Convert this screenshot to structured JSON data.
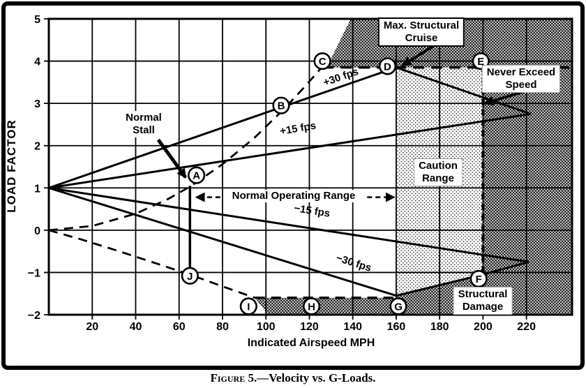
{
  "figure": {
    "caption_figure": "Figure",
    "caption_rest": " 5.—Velocity vs. G-Loads."
  },
  "axes": {
    "x_title": "Indicated Airspeed MPH",
    "y_title": "LOAD FACTOR"
  },
  "labels": {
    "max_structural_cruise": {
      "line1": "Max. Structural",
      "line2": "Cruise"
    },
    "never_exceed": {
      "line1": "Never Exceed",
      "line2": "Speed"
    },
    "caution_range": {
      "line1": "Caution",
      "line2": "Range"
    },
    "structural_damage": {
      "line1": "Structural",
      "line2": "Damage"
    },
    "normal_stall": {
      "line1": "Normal",
      "line2": "Stall"
    },
    "normal_operating_range": "Normal Operating Range"
  },
  "colors": {
    "ink": "#000000",
    "paper": "#ffffff",
    "dark_region_avg": "#8a8a8a",
    "caution_region_avg": "#c9c9c9"
  },
  "chart_data": {
    "type": "line",
    "title": "Figure 5.—Velocity vs. G-Loads.",
    "xlabel": "Indicated Airspeed MPH",
    "ylabel": "LOAD FACTOR",
    "xlim": [
      0,
      241
    ],
    "ylim": [
      -2,
      5
    ],
    "grid": true,
    "x_ticks": [
      {
        "v": 20,
        "label": "20"
      },
      {
        "v": 40,
        "label": "40"
      },
      {
        "v": 60,
        "label": "60"
      },
      {
        "v": 80,
        "label": "80"
      },
      {
        "v": 100,
        "label": "100"
      },
      {
        "v": 120,
        "label": "120"
      },
      {
        "v": 140,
        "label": "140"
      },
      {
        "v": 160,
        "label": "160"
      },
      {
        "v": 180,
        "label": "180"
      },
      {
        "v": 200,
        "label": "200"
      },
      {
        "v": 220,
        "label": "220"
      }
    ],
    "y_ticks": [
      {
        "n": 5,
        "label": "5"
      },
      {
        "n": 4,
        "label": "4"
      },
      {
        "n": 3,
        "label": "3"
      },
      {
        "n": 2,
        "label": "2"
      },
      {
        "n": 1,
        "label": "1"
      },
      {
        "n": 0,
        "label": "0"
      },
      {
        "n": -1,
        "label": "−1"
      },
      {
        "n": -2,
        "label": "−2"
      }
    ],
    "key_speeds": {
      "normal_stall_mph": 65,
      "max_structural_cruise_mph": 160,
      "never_exceed_mph": 200
    },
    "load_limits": {
      "positive": 3.85,
      "negative": -1.55
    },
    "regions": [
      {
        "name": "region-exceed-load-top",
        "fill": "dark",
        "poly": [
          [
            128,
            3.85
          ],
          [
            139,
            5
          ],
          [
            241,
            5
          ],
          [
            241,
            3.85
          ]
        ]
      },
      {
        "name": "region-beyond-vne",
        "fill": "dark",
        "poly": [
          [
            200,
            3.85
          ],
          [
            241,
            3.85
          ],
          [
            241,
            -2
          ],
          [
            200,
            -2
          ]
        ]
      },
      {
        "name": "region-below-negative-envelope",
        "fill": "dark",
        "poly": [
          [
            160,
            -1.55
          ],
          [
            200,
            -1.05
          ],
          [
            200,
            -2
          ],
          [
            160,
            -2
          ]
        ]
      },
      {
        "name": "region-negative-limit-strip",
        "fill": "dark",
        "poly": [
          [
            95,
            -1.6
          ],
          [
            160,
            -1.6
          ],
          [
            160,
            -2
          ],
          [
            101,
            -2
          ]
        ]
      },
      {
        "name": "region-caution-range",
        "fill": "light",
        "poly": [
          [
            160,
            3.85
          ],
          [
            200,
            3.85
          ],
          [
            200,
            -1.05
          ],
          [
            160,
            -1.55
          ]
        ]
      }
    ],
    "lines": [
      {
        "name": "gust-line-plus-30fps",
        "from": [
          0,
          1
        ],
        "to": [
          160,
          3.85
        ],
        "w": 3
      },
      {
        "name": "gust-line-plus-15fps",
        "from": [
          0,
          1
        ],
        "to": [
          222,
          2.75
        ],
        "w": 3
      },
      {
        "name": "gust-line-minus-15fps",
        "from": [
          0,
          1
        ],
        "to": [
          221,
          -0.75
        ],
        "w": 3
      },
      {
        "name": "gust-line-minus-30fps",
        "from": [
          0,
          1
        ],
        "to": [
          160,
          -1.55
        ],
        "w": 3
      },
      {
        "name": "envelope-upper",
        "from": [
          160,
          3.85
        ],
        "to": [
          222,
          2.75
        ],
        "w": 3
      },
      {
        "name": "envelope-lower-1",
        "from": [
          160,
          -1.55
        ],
        "to": [
          200,
          -1.05
        ],
        "w": 3
      },
      {
        "name": "envelope-lower-2",
        "from": [
          200,
          -1.05
        ],
        "to": [
          221,
          -0.75
        ],
        "w": 3
      },
      {
        "name": "stall-speed-vertical",
        "from": [
          65,
          1.05
        ],
        "to": [
          65,
          -0.9
        ],
        "w": 3.5
      }
    ],
    "dashed_lines": [
      {
        "name": "max-load-limit-dashed",
        "from": [
          126,
          3.85
        ],
        "to": [
          241,
          3.85
        ],
        "w": 3.5,
        "dash": "16 10"
      },
      {
        "name": "negative-limit-dashed",
        "from": [
          95,
          -1.6
        ],
        "to": [
          160,
          -1.6
        ],
        "w": 3.5,
        "dash": "14 9"
      },
      {
        "name": "never-exceed-dashed-vertical",
        "from": [
          200,
          3.85
        ],
        "to": [
          200,
          -1.05
        ],
        "w": 4,
        "dash": "9 6"
      }
    ],
    "curves": [
      {
        "name": "positive-stall-curve",
        "dash": "13 9",
        "w": 2.8,
        "points": [
          [
            0,
            0
          ],
          [
            20,
            0.1
          ],
          [
            40,
            0.39
          ],
          [
            55,
            0.74
          ],
          [
            65,
            1.03
          ],
          [
            80,
            1.56
          ],
          [
            95,
            2.2
          ],
          [
            108,
            2.85
          ],
          [
            118,
            3.4
          ],
          [
            126,
            3.87
          ]
        ]
      },
      {
        "name": "negative-stall-curve",
        "dash": "13 9",
        "w": 2.8,
        "points": [
          [
            0,
            0
          ],
          [
            15,
            -0.22
          ],
          [
            30,
            -0.46
          ],
          [
            45,
            -0.71
          ],
          [
            65,
            -1.05
          ],
          [
            80,
            -1.33
          ],
          [
            95,
            -1.6
          ]
        ]
      }
    ],
    "gust_labels": [
      {
        "text": "+30 fps",
        "v": 135,
        "n": 3.55,
        "rot": -19
      },
      {
        "text": "+15 fps",
        "v": 115,
        "n": 2.33,
        "rot": -9.5
      },
      {
        "text": "−15 fps",
        "v": 121,
        "n": 0.38,
        "rot": 9
      },
      {
        "text": "−30 fps",
        "v": 140,
        "n": -0.85,
        "rot": 17.5
      }
    ],
    "points": [
      {
        "id": "A",
        "v": 68,
        "n": 1.3
      },
      {
        "id": "B",
        "v": 107,
        "n": 2.95
      },
      {
        "id": "C",
        "v": 126,
        "n": 4.0
      },
      {
        "id": "D",
        "v": 156,
        "n": 3.88
      },
      {
        "id": "E",
        "v": 199,
        "n": 4.0
      },
      {
        "id": "F",
        "v": 198,
        "n": -1.15
      },
      {
        "id": "G",
        "v": 161,
        "n": -1.8
      },
      {
        "id": "H",
        "v": 121,
        "n": -1.8
      },
      {
        "id": "I",
        "v": 92,
        "n": -1.8
      },
      {
        "id": "J",
        "v": 65,
        "n": -1.08
      }
    ],
    "arrows": [
      {
        "name": "normal-stall-arrow",
        "from": [
          50.4,
          2.14
        ],
        "to": [
          63,
          1.25
        ],
        "w": 5
      },
      {
        "name": "max-structural-cruise-arrow",
        "from": [
          179,
          4.42
        ],
        "to": [
          163,
          3.9
        ],
        "w": 4
      },
      {
        "name": "never-exceed-arrow",
        "from": [
          222.5,
          3.34
        ],
        "to": [
          201,
          3.0
        ],
        "w": 4
      },
      {
        "name": "nor-arrow-left",
        "from": [
          79,
          0.78
        ],
        "to": [
          68,
          0.78
        ],
        "w": 2.5,
        "dash": "7 5"
      },
      {
        "name": "nor-arrow-right",
        "from": [
          146.6,
          0.78
        ],
        "to": [
          159,
          0.78
        ],
        "w": 2.5,
        "dash": "7 5"
      }
    ]
  }
}
